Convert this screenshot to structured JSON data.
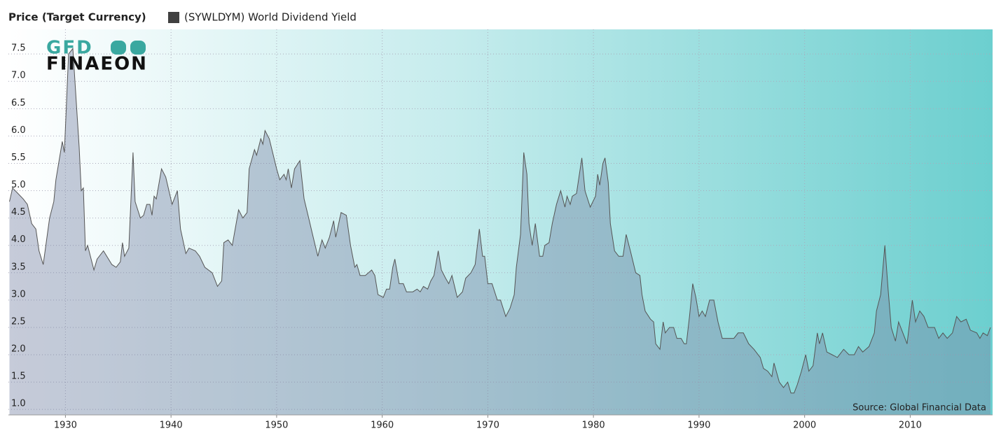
{
  "chart_data": {
    "type": "area",
    "title": "Price (Target Currency)",
    "series": [
      {
        "name": "(SYWLDYM) World Dividend Yield",
        "color": "#404040",
        "x": [
          1924.7,
          1925.0,
          1925.5,
          1926.0,
          1926.4,
          1926.8,
          1927.2,
          1927.5,
          1927.9,
          1928.5,
          1928.9,
          1929.1,
          1929.7,
          1929.9,
          1930.3,
          1930.7,
          1930.9,
          1931.3,
          1931.5,
          1931.7,
          1931.9,
          1932.1,
          1932.7,
          1933.0,
          1933.6,
          1934.4,
          1934.8,
          1935.2,
          1935.4,
          1935.6,
          1936.0,
          1936.4,
          1936.6,
          1937.1,
          1937.4,
          1937.7,
          1938.0,
          1938.2,
          1938.4,
          1938.6,
          1939.1,
          1939.5,
          1940.1,
          1940.6,
          1940.9,
          1941.4,
          1941.7,
          1942.3,
          1942.7,
          1943.2,
          1943.9,
          1944.4,
          1944.8,
          1945.0,
          1945.4,
          1945.8,
          1946.4,
          1946.8,
          1947.2,
          1947.4,
          1947.9,
          1948.1,
          1948.5,
          1948.7,
          1948.9,
          1949.3,
          1950.0,
          1950.3,
          1950.7,
          1950.9,
          1951.1,
          1951.4,
          1951.7,
          1952.2,
          1952.6,
          1953.1,
          1953.4,
          1953.9,
          1954.3,
          1954.6,
          1955.0,
          1955.4,
          1955.6,
          1956.1,
          1956.6,
          1957.0,
          1957.4,
          1957.6,
          1957.9,
          1958.4,
          1959.0,
          1959.3,
          1959.6,
          1960.1,
          1960.4,
          1960.7,
          1961.0,
          1961.2,
          1961.6,
          1962.0,
          1962.3,
          1962.9,
          1963.3,
          1963.6,
          1963.9,
          1964.3,
          1964.6,
          1964.9,
          1965.3,
          1965.6,
          1966.0,
          1966.3,
          1966.6,
          1967.1,
          1967.6,
          1967.9,
          1968.4,
          1968.8,
          1969.2,
          1969.5,
          1969.7,
          1970.0,
          1970.4,
          1970.9,
          1971.2,
          1971.7,
          1972.1,
          1972.5,
          1972.7,
          1973.1,
          1973.4,
          1973.7,
          1973.9,
          1974.2,
          1974.5,
          1974.9,
          1975.2,
          1975.4,
          1975.8,
          1976.1,
          1976.5,
          1976.9,
          1977.3,
          1977.5,
          1977.8,
          1978.0,
          1978.4,
          1978.9,
          1979.2,
          1979.7,
          1980.2,
          1980.4,
          1980.6,
          1980.9,
          1981.1,
          1981.4,
          1981.6,
          1982.0,
          1982.4,
          1982.8,
          1983.1,
          1983.5,
          1984.0,
          1984.4,
          1984.6,
          1984.9,
          1985.4,
          1985.7,
          1985.9,
          1986.3,
          1986.6,
          1986.8,
          1987.2,
          1987.6,
          1987.9,
          1988.3,
          1988.6,
          1988.8,
          1989.1,
          1989.4,
          1989.7,
          1990.0,
          1990.3,
          1990.6,
          1991.0,
          1991.4,
          1991.8,
          1992.2,
          1992.8,
          1993.3,
          1993.7,
          1994.2,
          1994.7,
          1995.2,
          1995.8,
          1996.1,
          1996.5,
          1996.9,
          1997.1,
          1997.6,
          1998.0,
          1998.4,
          1998.7,
          1999.0,
          1999.3,
          1999.7,
          2000.1,
          2000.4,
          2000.8,
          2001.2,
          2001.4,
          2001.7,
          2002.1,
          2002.6,
          2003.1,
          2003.7,
          2004.2,
          2004.7,
          2005.1,
          2005.5,
          2006.1,
          2006.6,
          2006.8,
          2007.2,
          2007.6,
          2007.9,
          2008.2,
          2008.6,
          2008.9,
          2009.3,
          2009.7,
          2010.2,
          2010.5,
          2010.9,
          2011.3,
          2011.7,
          2012.3,
          2012.7,
          2013.1,
          2013.5,
          2014.0,
          2014.4,
          2014.8,
          2015.3,
          2015.7,
          2016.3,
          2016.6,
          2016.9,
          2017.3,
          2017.6
        ],
        "values": [
          4.8,
          5.05,
          4.95,
          4.85,
          4.75,
          4.4,
          4.3,
          3.9,
          3.65,
          4.5,
          4.8,
          5.2,
          5.9,
          5.7,
          7.5,
          7.6,
          7.0,
          5.8,
          5.0,
          5.05,
          3.9,
          4.0,
          3.55,
          3.75,
          3.9,
          3.65,
          3.6,
          3.7,
          4.05,
          3.8,
          3.95,
          5.7,
          4.8,
          4.5,
          4.55,
          4.75,
          4.75,
          4.55,
          4.9,
          4.85,
          5.4,
          5.25,
          4.75,
          5.0,
          4.3,
          3.85,
          3.95,
          3.9,
          3.8,
          3.6,
          3.5,
          3.25,
          3.35,
          4.05,
          4.1,
          4.0,
          4.65,
          4.5,
          4.6,
          5.4,
          5.75,
          5.65,
          5.95,
          5.85,
          6.1,
          5.95,
          5.4,
          5.2,
          5.3,
          5.2,
          5.4,
          5.05,
          5.4,
          5.55,
          4.85,
          4.45,
          4.2,
          3.8,
          4.1,
          3.95,
          4.15,
          4.45,
          4.15,
          4.6,
          4.55,
          4.0,
          3.6,
          3.65,
          3.45,
          3.45,
          3.55,
          3.45,
          3.1,
          3.05,
          3.2,
          3.2,
          3.6,
          3.75,
          3.3,
          3.3,
          3.15,
          3.15,
          3.2,
          3.15,
          3.25,
          3.2,
          3.35,
          3.45,
          3.9,
          3.55,
          3.4,
          3.3,
          3.45,
          3.05,
          3.15,
          3.4,
          3.5,
          3.65,
          4.3,
          3.8,
          3.8,
          3.3,
          3.3,
          3.0,
          3.0,
          2.7,
          2.85,
          3.1,
          3.6,
          4.2,
          5.7,
          5.3,
          4.4,
          4.0,
          4.4,
          3.8,
          3.8,
          4.0,
          4.05,
          4.4,
          4.75,
          5.0,
          4.7,
          4.9,
          4.75,
          4.9,
          4.95,
          5.6,
          5.0,
          4.7,
          4.9,
          5.3,
          5.1,
          5.5,
          5.6,
          5.15,
          4.4,
          3.9,
          3.8,
          3.8,
          4.2,
          3.9,
          3.5,
          3.45,
          3.1,
          2.8,
          2.65,
          2.6,
          2.2,
          2.1,
          2.6,
          2.4,
          2.5,
          2.5,
          2.3,
          2.3,
          2.2,
          2.2,
          2.7,
          3.3,
          3.05,
          2.7,
          2.8,
          2.7,
          3.0,
          3.0,
          2.6,
          2.3,
          2.3,
          2.3,
          2.4,
          2.4,
          2.2,
          2.1,
          1.95,
          1.75,
          1.7,
          1.6,
          1.85,
          1.5,
          1.4,
          1.5,
          1.3,
          1.3,
          1.45,
          1.7,
          2.0,
          1.7,
          1.8,
          2.4,
          2.2,
          2.4,
          2.05,
          2.0,
          1.95,
          2.1,
          2.0,
          2.0,
          2.15,
          2.05,
          2.15,
          2.4,
          2.8,
          3.1,
          4.0,
          3.2,
          2.5,
          2.25,
          2.6,
          2.4,
          2.2,
          3.0,
          2.6,
          2.8,
          2.7,
          2.5,
          2.5,
          2.3,
          2.4,
          2.3,
          2.4,
          2.7,
          2.6,
          2.65,
          2.45,
          2.4,
          2.3,
          2.4,
          2.35,
          2.5
        ]
      }
    ],
    "xlim": [
      1924.6,
      2017.8
    ],
    "xticks": [
      1930,
      1940,
      1950,
      1960,
      1970,
      1980,
      1990,
      2000,
      2010
    ],
    "ylim": [
      0.9,
      7.95
    ],
    "yticks": [
      {
        "value": 1,
        "label": "1.0"
      },
      1.5,
      {
        "value": 2,
        "label": "2.0"
      },
      2.5,
      {
        "value": 3,
        "label": "3.0"
      },
      3.5,
      {
        "value": 4,
        "label": "4.0"
      },
      4.5,
      {
        "value": 5,
        "label": "5.0"
      },
      5.5,
      {
        "value": 6,
        "label": "6.0"
      },
      6.5,
      {
        "value": 7,
        "label": "7.0"
      },
      7.5
    ],
    "grid": true,
    "source": "Source: Global Financial Data",
    "logo": [
      "GFD",
      "FINAEON"
    ]
  }
}
